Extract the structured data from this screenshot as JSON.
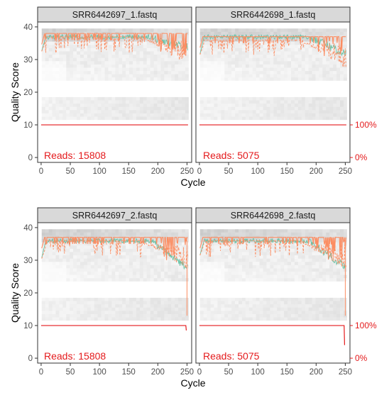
{
  "chart_data": {
    "type": "line",
    "xlabel": "Cycle",
    "ylabel": "Quality Score",
    "xlim": [
      -6,
      258
    ],
    "ylim": [
      -1.5,
      41.5
    ],
    "x_ticks": [
      "0",
      "50",
      "100",
      "150",
      "200",
      "250"
    ],
    "y_ticks": [
      "0",
      "10",
      "20",
      "30",
      "40"
    ],
    "right_axis_ticks": [
      "100%",
      "0%"
    ],
    "colors": {
      "mean": "#66c2a5",
      "quantile": "#fc8d62",
      "cumulative": "#e41a1c",
      "heatmap": "#6a6a6a",
      "panel_border": "#333333",
      "strip_fill": "#d9d9d9"
    },
    "panels": [
      {
        "title": "SRR6442697_1.fastq",
        "reads_label": "Reads:  15808",
        "mean_start": 32,
        "mean_plateau": 37,
        "mean_end": 34,
        "median": 38,
        "cumulative_end": 10,
        "drop_cycle": 251
      },
      {
        "title": "SRR6442698_1.fastq",
        "reads_label": "Reads:  5075",
        "mean_start": 31,
        "mean_plateau": 37,
        "mean_end": 32,
        "median": 37,
        "cumulative_end": 10,
        "drop_cycle": 251
      },
      {
        "title": "SRR6442697_2.fastq",
        "reads_label": "Reads:  15808",
        "mean_start": 30,
        "mean_plateau": 36,
        "mean_end": 28,
        "median": 37,
        "cumulative_end": 8.5,
        "drop_cycle": 248
      },
      {
        "title": "SRR6442698_2.fastq",
        "reads_label": "Reads:  5075",
        "mean_start": 31,
        "mean_plateau": 36,
        "mean_end": 28,
        "median": 37,
        "cumulative_end": 4,
        "drop_cycle": 248
      }
    ]
  }
}
